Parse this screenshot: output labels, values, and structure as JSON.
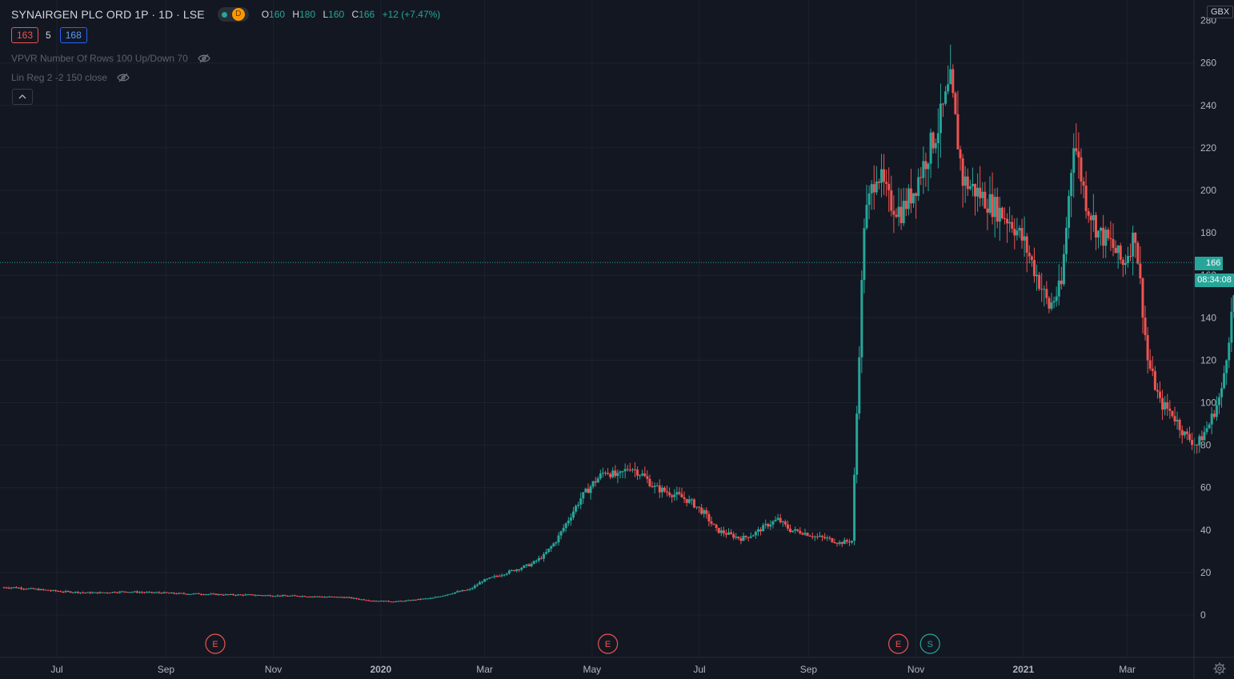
{
  "symbol": {
    "title": "SYNAIRGEN PLC ORD 1P · 1D · LSE",
    "status_label": "D",
    "ohlc": {
      "o_label": "O",
      "o": "160",
      "h_label": "H",
      "h": "180",
      "l_label": "L",
      "l": "160",
      "c_label": "C",
      "c": "166",
      "change": "+12 (+7.47%)"
    }
  },
  "spread": {
    "bid": "163",
    "spread": "5",
    "ask": "168"
  },
  "indicators": [
    {
      "label": "VPVR Number Of Rows 100 Up/Down 70",
      "icon": "eye-hidden-icon"
    },
    {
      "label": "Lin Reg 2 -2 150 close",
      "icon": "eye-hidden-icon"
    }
  ],
  "currency": "GBX",
  "last_price_tag": "166",
  "countdown": "08:34:08",
  "colors": {
    "up": "#26a69a",
    "down": "#ef5350",
    "background": "#131722",
    "grid": "#1e222d"
  },
  "chart_data": {
    "type": "candlestick",
    "x_start": "2020-06-01",
    "ylim": [
      -20,
      280
    ],
    "yticks": [
      0,
      20,
      40,
      60,
      80,
      100,
      120,
      140,
      160,
      180,
      200,
      220,
      240,
      260
    ],
    "top_tick_label": "280",
    "xticks": [
      {
        "label": "Jul",
        "date": "2020-07-01",
        "bold": false
      },
      {
        "label": "Sep",
        "date": "2020-09-01",
        "bold": false
      },
      {
        "label": "Nov",
        "date": "2020-11-01",
        "bold": false
      },
      {
        "label": "2020",
        "date": "2021-01-01",
        "bold": true
      },
      {
        "label": "Mar",
        "date": "2021-03-01",
        "bold": false
      },
      {
        "label": "May",
        "date": "2021-05-01",
        "bold": false
      },
      {
        "label": "Jul",
        "date": "2021-07-01",
        "bold": false
      },
      {
        "label": "Sep",
        "date": "2021-09-01",
        "bold": false
      },
      {
        "label": "Nov",
        "date": "2021-11-01",
        "bold": false
      },
      {
        "label": "2021",
        "date": "2022-01-01",
        "bold": true
      },
      {
        "label": "Mar",
        "date": "2022-03-01",
        "bold": false
      }
    ],
    "last_price": 166,
    "events": [
      {
        "label": "E",
        "date": "2020-09-29",
        "kind": "earnings"
      },
      {
        "label": "E",
        "date": "2021-05-10",
        "kind": "earnings"
      },
      {
        "label": "E",
        "date": "2021-10-22",
        "kind": "earnings"
      },
      {
        "label": "S",
        "date": "2021-11-09",
        "kind": "split"
      }
    ],
    "series_weekly_close": [
      [
        "2020-06-01",
        13
      ],
      [
        "2020-06-08",
        13
      ],
      [
        "2020-06-15",
        12.5
      ],
      [
        "2020-06-22",
        12
      ],
      [
        "2020-06-29",
        11.5
      ],
      [
        "2020-07-06",
        11
      ],
      [
        "2020-07-13",
        10.8
      ],
      [
        "2020-07-20",
        10.5
      ],
      [
        "2020-07-27",
        10.5
      ],
      [
        "2020-08-03",
        10.8
      ],
      [
        "2020-08-10",
        11
      ],
      [
        "2020-08-17",
        10.8
      ],
      [
        "2020-08-24",
        10.6
      ],
      [
        "2020-08-31",
        10.5
      ],
      [
        "2020-09-07",
        10.2
      ],
      [
        "2020-09-14",
        10
      ],
      [
        "2020-09-21",
        10
      ],
      [
        "2020-09-28",
        9.8
      ],
      [
        "2020-10-05",
        9.6
      ],
      [
        "2020-10-12",
        9.5
      ],
      [
        "2020-10-19",
        9.5
      ],
      [
        "2020-10-26",
        9.3
      ],
      [
        "2020-11-02",
        9.2
      ],
      [
        "2020-11-09",
        9
      ],
      [
        "2020-11-16",
        9
      ],
      [
        "2020-11-23",
        8.8
      ],
      [
        "2020-11-30",
        8.6
      ],
      [
        "2020-12-07",
        8.5
      ],
      [
        "2020-12-14",
        8.3
      ],
      [
        "2020-12-21",
        7.5
      ],
      [
        "2020-12-28",
        6.8
      ],
      [
        "2021-01-04",
        6.5
      ],
      [
        "2021-01-11",
        6.4
      ],
      [
        "2021-01-18",
        6.8
      ],
      [
        "2021-01-25",
        7.5
      ],
      [
        "2021-02-01",
        8
      ],
      [
        "2021-02-08",
        9.5
      ],
      [
        "2021-02-15",
        11
      ],
      [
        "2021-02-22",
        12
      ],
      [
        "2021-03-01",
        16
      ],
      [
        "2021-03-08",
        18
      ],
      [
        "2021-03-15",
        20
      ],
      [
        "2021-03-22",
        22
      ],
      [
        "2021-03-29",
        24
      ],
      [
        "2021-04-05",
        28
      ],
      [
        "2021-04-12",
        35
      ],
      [
        "2021-04-19",
        45
      ],
      [
        "2021-04-26",
        55
      ],
      [
        "2021-05-03",
        62
      ],
      [
        "2021-05-10",
        68
      ],
      [
        "2021-05-17",
        65
      ],
      [
        "2021-05-24",
        70
      ],
      [
        "2021-05-31",
        66
      ],
      [
        "2021-06-07",
        60
      ],
      [
        "2021-06-14",
        58
      ],
      [
        "2021-06-21",
        56
      ],
      [
        "2021-06-28",
        53
      ],
      [
        "2021-07-05",
        48
      ],
      [
        "2021-07-12",
        40
      ],
      [
        "2021-07-19",
        38
      ],
      [
        "2021-07-26",
        36
      ],
      [
        "2021-08-02",
        38
      ],
      [
        "2021-08-09",
        42
      ],
      [
        "2021-08-16",
        45
      ],
      [
        "2021-08-23",
        40
      ],
      [
        "2021-08-30",
        39
      ],
      [
        "2021-09-06",
        37
      ],
      [
        "2021-09-13",
        36
      ],
      [
        "2021-09-20",
        34
      ],
      [
        "2021-09-27",
        35
      ],
      [
        "2021-10-04",
        185
      ],
      [
        "2021-10-11",
        210
      ],
      [
        "2021-10-18",
        195
      ],
      [
        "2021-10-25",
        190
      ],
      [
        "2021-11-01",
        200
      ],
      [
        "2021-11-08",
        215
      ],
      [
        "2021-11-15",
        230
      ],
      [
        "2021-11-22",
        250
      ],
      [
        "2021-11-29",
        205
      ],
      [
        "2021-12-06",
        200
      ],
      [
        "2021-12-13",
        195
      ],
      [
        "2021-12-20",
        190
      ],
      [
        "2021-12-27",
        185
      ],
      [
        "2022-01-03",
        175
      ],
      [
        "2022-01-10",
        160
      ],
      [
        "2022-01-17",
        145
      ],
      [
        "2022-01-24",
        155
      ],
      [
        "2022-01-31",
        225
      ],
      [
        "2022-02-07",
        195
      ],
      [
        "2022-02-14",
        180
      ],
      [
        "2022-02-21",
        175
      ],
      [
        "2022-02-28",
        165
      ],
      [
        "2022-03-07",
        180
      ],
      [
        "2022-03-14",
        120
      ],
      [
        "2022-03-21",
        100
      ],
      [
        "2022-03-28",
        95
      ],
      [
        "2022-04-04",
        85
      ],
      [
        "2022-04-11",
        80
      ],
      [
        "2022-04-18",
        90
      ],
      [
        "2022-04-25",
        105
      ],
      [
        "2022-05-02",
        150
      ],
      [
        "2022-05-09",
        155
      ],
      [
        "2022-05-16",
        160
      ],
      [
        "2022-05-23",
        145
      ],
      [
        "2022-05-30",
        166
      ]
    ]
  }
}
